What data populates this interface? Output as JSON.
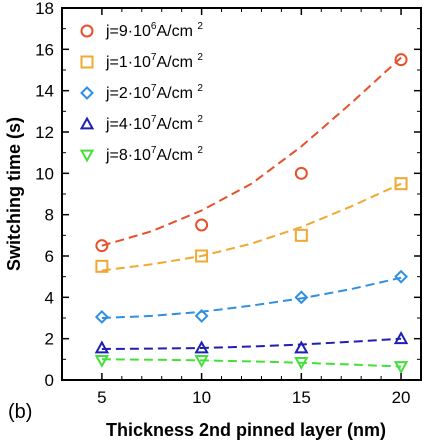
{
  "chart_data": {
    "type": "scatter",
    "panel_label": "(b)",
    "xlabel": "Thickness 2nd pinned layer (nm)",
    "ylabel": "Switching time (s)",
    "xlim": [
      3,
      21
    ],
    "ylim": [
      0,
      18
    ],
    "xticks": [
      5,
      10,
      15,
      20
    ],
    "yticks": [
      0,
      2,
      4,
      6,
      8,
      10,
      12,
      14,
      16,
      18
    ],
    "grid": false,
    "legend_position": "top-left",
    "series": [
      {
        "name_parts": [
          "j=9·10",
          "6",
          "A/cm ",
          "2"
        ],
        "marker": "circle",
        "color": "#e8502a",
        "x": [
          5,
          10,
          15,
          20
        ],
        "y": [
          6.5,
          7.5,
          10.0,
          15.5
        ],
        "fit": [
          6.5,
          7.2,
          8.2,
          9.5,
          11.3,
          13.4,
          15.6
        ]
      },
      {
        "name_parts": [
          "j=1·10",
          "7",
          "A/cm ",
          "2"
        ],
        "marker": "square",
        "color": "#f0a830",
        "x": [
          5,
          10,
          15,
          20
        ],
        "y": [
          5.5,
          6.0,
          7.0,
          9.5
        ],
        "fit": [
          5.3,
          5.6,
          6.0,
          6.6,
          7.4,
          8.4,
          9.5
        ]
      },
      {
        "name_parts": [
          "j=2·10",
          "7",
          "A/cm ",
          "2"
        ],
        "marker": "diamond",
        "color": "#2f8fe0",
        "x": [
          5,
          10,
          15,
          20
        ],
        "y": [
          3.05,
          3.1,
          4.0,
          5.0
        ],
        "fit": [
          3.0,
          3.1,
          3.3,
          3.6,
          3.95,
          4.4,
          4.95
        ]
      },
      {
        "name_parts": [
          "j=4·10",
          "7",
          "A/cm ",
          "2"
        ],
        "marker": "triangle-up",
        "color": "#1f1fb0",
        "x": [
          5,
          10,
          15,
          20
        ],
        "y": [
          1.55,
          1.55,
          1.55,
          2.0
        ],
        "fit": [
          1.5,
          1.52,
          1.55,
          1.62,
          1.72,
          1.85,
          2.0
        ]
      },
      {
        "name_parts": [
          "j=8·10",
          "7",
          "A/cm ",
          "2"
        ],
        "marker": "triangle-down",
        "color": "#44e03a",
        "x": [
          5,
          10,
          15,
          20
        ],
        "y": [
          0.95,
          0.95,
          0.85,
          0.65
        ],
        "fit": [
          1.0,
          0.98,
          0.95,
          0.9,
          0.83,
          0.75,
          0.65
        ]
      }
    ]
  }
}
